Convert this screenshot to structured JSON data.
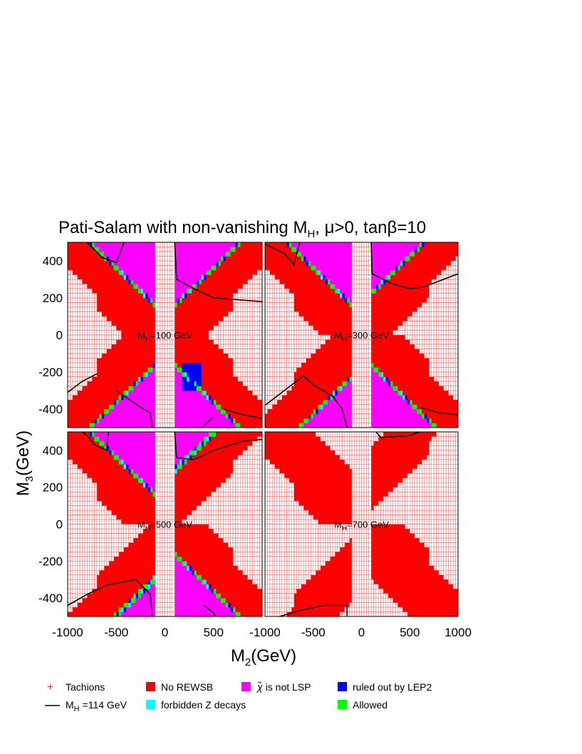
{
  "chart_data": {
    "type": "heatmap",
    "title": {
      "pre": "Pati-Salam with non-vanishing M",
      "sub": "H",
      "post": ", μ>0, tanβ=10"
    },
    "xlabel": {
      "main": "M",
      "sub": "2",
      "post": "(GeV)"
    },
    "ylabel": {
      "main": "M",
      "sub": "3",
      "post": "(GeV)"
    },
    "xlim": [
      -1000,
      1000
    ],
    "ylim": [
      -500,
      500
    ],
    "x_ticks": [
      "-1000",
      "-500",
      "0",
      "500",
      "-1000",
      "-500",
      "0",
      "500",
      "1000"
    ],
    "y_ticks_top": [
      "400",
      "200",
      "0",
      "-200",
      "-400"
    ],
    "y_ticks_bottom": [
      "400",
      "200",
      "0",
      "-200",
      "-400"
    ],
    "grid": true,
    "colors": {
      "tachion": "#ff6b6b",
      "no_rewsb": "#ff0000",
      "not_lsp": "#ff00ff",
      "lep2": "#0000ff",
      "z_decays": "#00ffff",
      "allowed": "#00ff00",
      "higgs_contour": "#000000"
    },
    "panels": [
      {
        "id": "mh100",
        "label": {
          "pre": "M",
          "sub": "H",
          "post": "=100 GeV"
        },
        "offsetN": 0,
        "offsetS": 0,
        "extraS": 0,
        "lsp_N": true,
        "lsp_S": true,
        "blue_blob_N": true,
        "blue_blob_S": true,
        "contours_N": [
          [
            [
              -800,
              500
            ],
            [
              -650,
              420
            ],
            [
              -500,
              390
            ],
            [
              -420,
              500
            ]
          ],
          [
            [
              100,
              500
            ],
            [
              120,
              300
            ],
            [
              300,
              250
            ],
            [
              500,
              200
            ],
            [
              1000,
              180
            ]
          ]
        ],
        "contours_S": [
          [
            [
              -1000,
              -310
            ],
            [
              -850,
              -250
            ],
            [
              -700,
              -210
            ]
          ],
          [
            [
              -500,
              -300
            ],
            [
              -250,
              -390
            ],
            [
              -150,
              -420
            ],
            [
              -130,
              -500
            ]
          ],
          [
            [
              600,
              -400
            ],
            [
              800,
              -430
            ],
            [
              1000,
              -450
            ]
          ],
          [
            [
              400,
              -490
            ],
            [
              500,
              -440
            ]
          ]
        ]
      },
      {
        "id": "mh300",
        "label": {
          "pre": "M",
          "sub": "H",
          "post": "=300 GeV"
        },
        "offsetN": 60,
        "offsetS": 0,
        "extraS": 0,
        "lsp_N": true,
        "lsp_S": true,
        "blue_blob_N": false,
        "blue_blob_S": false,
        "contours_N": [
          [
            [
              -1000,
              490
            ],
            [
              -800,
              440
            ],
            [
              -700,
              380
            ],
            [
              -640,
              500
            ]
          ],
          [
            [
              100,
              500
            ],
            [
              110,
              330
            ],
            [
              300,
              280
            ],
            [
              500,
              250
            ],
            [
              650,
              260
            ],
            [
              1000,
              330
            ]
          ]
        ],
        "contours_S": [
          [
            [
              -1000,
              -380
            ],
            [
              -800,
              -300
            ],
            [
              -600,
              -220
            ],
            [
              -500,
              -270
            ],
            [
              -300,
              -330
            ],
            [
              -200,
              -400
            ],
            [
              -150,
              -500
            ]
          ],
          [
            [
              600,
              -390
            ],
            [
              800,
              -420
            ],
            [
              1000,
              -430
            ]
          ]
        ]
      },
      {
        "id": "mh500",
        "label": {
          "pre": "M",
          "sub": "H",
          "post": "=500 GeV"
        },
        "offsetN": 130,
        "offsetS": 0,
        "extraS": 0,
        "lsp_N": true,
        "lsp_S": true,
        "blue_blob_N": false,
        "blue_blob_S": false,
        "contours_N": [
          [
            [
              -850,
              500
            ],
            [
              -800,
              480
            ],
            [
              -720,
              430
            ],
            [
              -600,
              400
            ],
            [
              -580,
              500
            ]
          ],
          [
            [
              100,
              500
            ],
            [
              120,
              360
            ],
            [
              300,
              350
            ],
            [
              500,
              400
            ],
            [
              800,
              450
            ],
            [
              1000,
              460
            ]
          ]
        ],
        "contours_S": [
          [
            [
              -1000,
              -440
            ],
            [
              -800,
              -380
            ],
            [
              -600,
              -330
            ],
            [
              -300,
              -300
            ],
            [
              -150,
              -380
            ],
            [
              -130,
              -500
            ]
          ],
          [
            [
              400,
              -440
            ],
            [
              500,
              -480
            ],
            [
              520,
              -500
            ]
          ]
        ]
      },
      {
        "id": "mh700",
        "label": {
          "pre": "M",
          "sub": "H",
          "post": "=700 GeV"
        },
        "offsetN": 240,
        "offsetS": 0,
        "extraS": 120,
        "lsp_N": false,
        "lsp_S": false,
        "blue_blob_N": false,
        "blue_blob_S": false,
        "contours_N": [
          [
            [
              150,
              500
            ],
            [
              200,
              470
            ],
            [
              500,
              480
            ],
            [
              600,
              500
            ]
          ]
        ],
        "contours_S": [
          [
            [
              -850,
              -500
            ],
            [
              -650,
              -470
            ],
            [
              -400,
              -440
            ],
            [
              -150,
              -440
            ],
            [
              -150,
              -500
            ]
          ]
        ]
      }
    ]
  },
  "legend": [
    {
      "key": "tachion",
      "label": "Tachions",
      "swatch": "plus"
    },
    {
      "key": "no_rewsb",
      "label": "No REWSB",
      "swatch": "box"
    },
    {
      "key": "not_lsp",
      "label": "is not LSP",
      "symbol": "χ̃",
      "swatch": "box"
    },
    {
      "key": "lep2",
      "label": "ruled out by LEP2",
      "swatch": "box"
    },
    {
      "key": "higgs_contour",
      "label": {
        "pre": "M",
        "sub": "H",
        "post": " =114 GeV"
      },
      "swatch": "line"
    },
    {
      "key": "z_decays",
      "label": "forbidden Z decays",
      "swatch": "box"
    },
    {
      "key": "allowed",
      "label": "Allowed",
      "swatch": "box"
    }
  ]
}
